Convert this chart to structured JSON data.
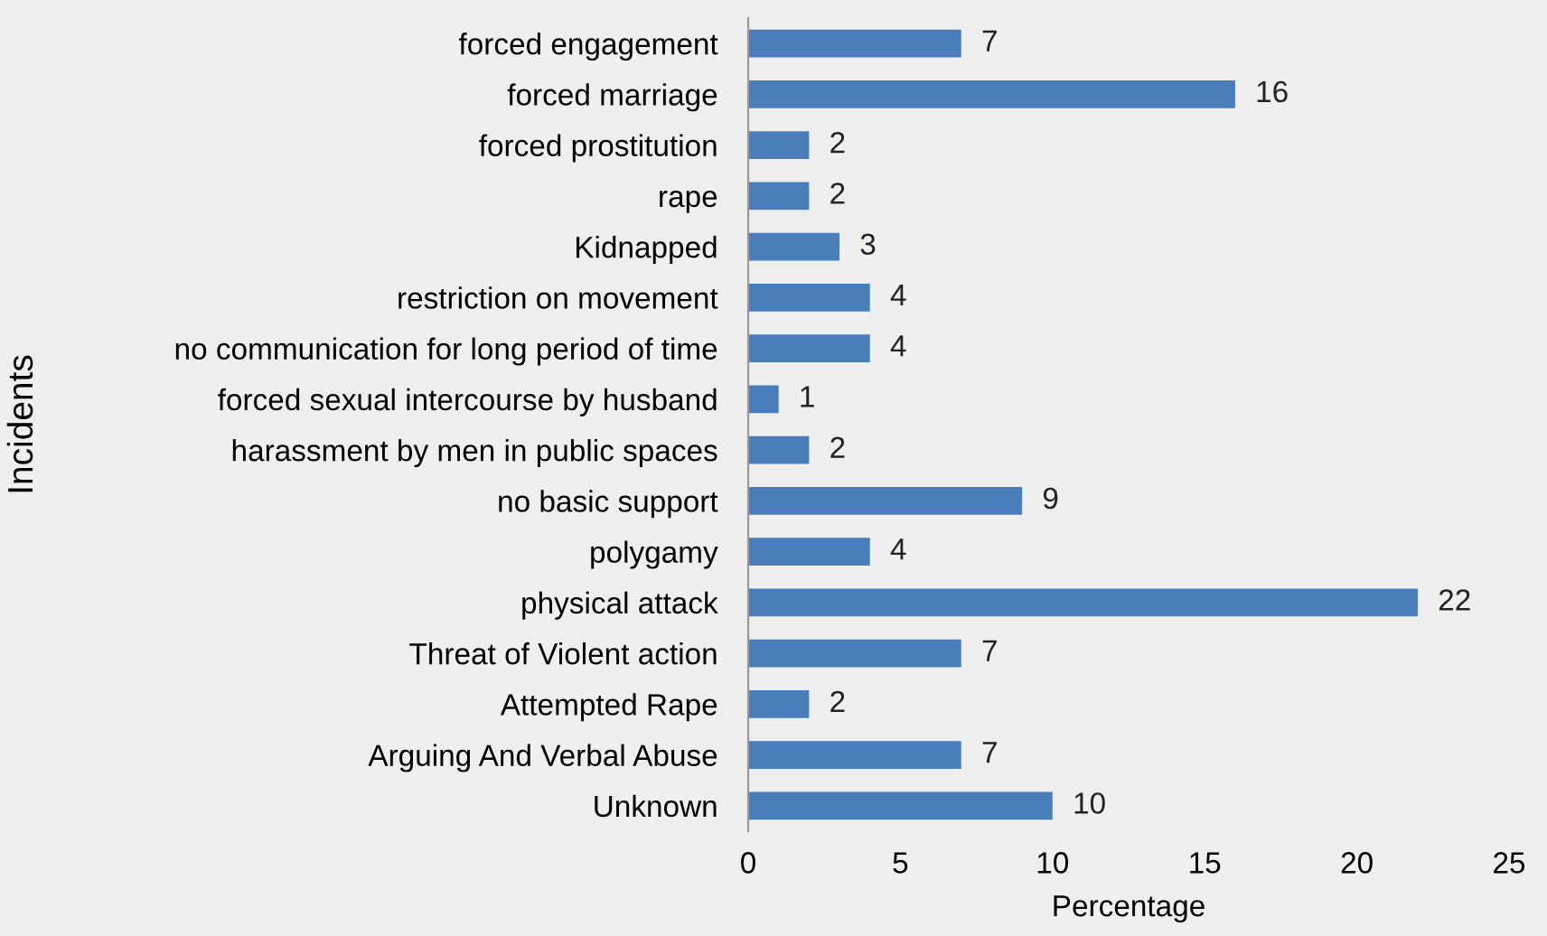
{
  "chart_data": {
    "type": "bar",
    "orientation": "horizontal",
    "xlabel": "Percentage",
    "ylabel": "Incidents",
    "categories": [
      "forced engagement",
      "forced marriage",
      "forced prostitution",
      "rape",
      "Kidnapped",
      "restriction on movement",
      "no communication for long period of time",
      "forced sexual intercourse by husband",
      "harassment by men in public spaces",
      "no basic support",
      "polygamy",
      "physical attack",
      "Threat of Violent action",
      "Attempted Rape",
      "Arguing And Verbal Abuse",
      "Unknown"
    ],
    "values": [
      7,
      16,
      2,
      2,
      3,
      4,
      4,
      1,
      2,
      9,
      4,
      22,
      7,
      2,
      7,
      10
    ],
    "color": "#4a7ebb",
    "xlim": [
      0,
      25
    ],
    "xticks": [
      0,
      5,
      10,
      15,
      20,
      25
    ],
    "data_labels": true,
    "grid": false,
    "legend": false
  }
}
